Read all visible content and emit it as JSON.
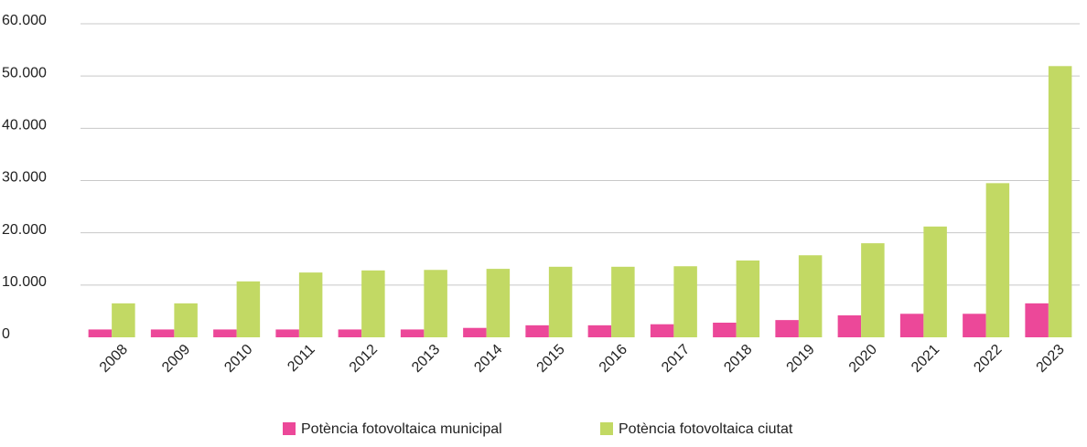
{
  "chart_data": {
    "type": "bar",
    "categories": [
      "2008",
      "2009",
      "2010",
      "2011",
      "2012",
      "2013",
      "2014",
      "2015",
      "2016",
      "2017",
      "2018",
      "2019",
      "2020",
      "2021",
      "2022",
      "2023"
    ],
    "series": [
      {
        "name": "Potència fotovoltaica municipal",
        "color": "#ec4899",
        "values": [
          1500,
          1500,
          1500,
          1500,
          1500,
          1500,
          1800,
          2300,
          2300,
          2500,
          2800,
          3300,
          4200,
          4500,
          4500,
          6500
        ]
      },
      {
        "name": "Potència fotovoltaica ciutat",
        "color": "#c2d964",
        "values": [
          6500,
          6500,
          10700,
          12400,
          12800,
          12900,
          13100,
          13500,
          13500,
          13600,
          14700,
          15700,
          18000,
          21200,
          29500,
          51900
        ]
      }
    ],
    "ylim": [
      0,
      60000
    ],
    "yticks": [
      0,
      {
        "value": 10000,
        "label": "10.000"
      },
      {
        "value": 20000,
        "label": "20.000"
      },
      {
        "value": 30000,
        "label": "30.000"
      },
      {
        "value": 40000,
        "label": "40.000"
      },
      {
        "value": 50000,
        "label": "50.000"
      },
      {
        "value": 60000,
        "label": "60.000"
      }
    ],
    "grid": true,
    "legend": "bottom"
  }
}
